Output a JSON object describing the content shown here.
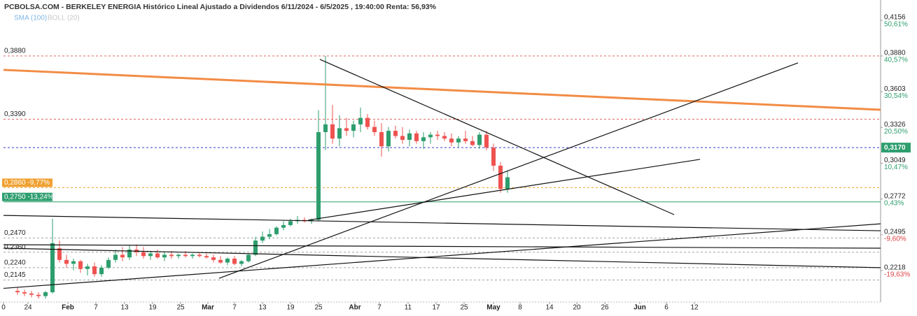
{
  "chart_data": {
    "type": "candlestick",
    "title": "PCBOLSA.COM - BERKELEY ENERGIA Histórico Lineal Ajustado a Dividendos 6/11/2024 - 6/5/2025 , 19:40:00 Renta: 56,93%",
    "legend": [
      "SMA (100)",
      "BOLL (20)"
    ],
    "up_color": "#2e9e6e",
    "down_color": "#ef5350",
    "xlim": [
      0,
      125.3
    ],
    "ylim": [
      0.1985,
      0.4286
    ],
    "xticks": [
      {
        "value": 0,
        "label": "0"
      },
      {
        "value": 3.5,
        "label": "24"
      },
      {
        "value": 9.2,
        "label": "Feb"
      },
      {
        "value": 13.2,
        "label": "7"
      },
      {
        "value": 17.3,
        "label": "13"
      },
      {
        "value": 21.3,
        "label": "19"
      },
      {
        "value": 25.3,
        "label": "25"
      },
      {
        "value": 29.2,
        "label": "Mar"
      },
      {
        "value": 33,
        "label": "7"
      },
      {
        "value": 37,
        "label": "13"
      },
      {
        "value": 41,
        "label": "19"
      },
      {
        "value": 45,
        "label": "25"
      },
      {
        "value": 50.2,
        "label": "Abr"
      },
      {
        "value": 53.7,
        "label": "7"
      },
      {
        "value": 57.8,
        "label": "11"
      },
      {
        "value": 61.8,
        "label": "17"
      },
      {
        "value": 65.8,
        "label": "25"
      },
      {
        "value": 70,
        "label": "May"
      },
      {
        "value": 73.8,
        "label": "8"
      },
      {
        "value": 78,
        "label": "14"
      },
      {
        "value": 81.9,
        "label": "20"
      },
      {
        "value": 85.9,
        "label": "26"
      },
      {
        "value": 90.9,
        "label": "Jun"
      },
      {
        "value": 94.7,
        "label": "6"
      },
      {
        "value": 98.7,
        "label": "12"
      }
    ],
    "yticks": [
      {
        "value": 0.4156,
        "label": "0,4156"
      },
      {
        "value": 0.388,
        "label": "0,3880"
      },
      {
        "value": 0.3603,
        "label": "0,3603"
      },
      {
        "value": 0.3326,
        "label": "0,3326"
      },
      {
        "value": 0.3049,
        "label": "0,3049"
      },
      {
        "value": 0.2772,
        "label": "0,2772"
      },
      {
        "value": 0.2495,
        "label": "0,2495"
      },
      {
        "value": 0.2218,
        "label": "0,2218"
      }
    ],
    "ytick_percent": [
      "50,61%",
      "40,57%",
      "30,54%",
      "20,50%",
      "10,47%",
      "0,43%",
      "-9,60%",
      "-19,63%"
    ],
    "levels": [
      {
        "value": 0.388,
        "label": "0,3880",
        "color": "#e06666",
        "style": "dashed"
      },
      {
        "value": 0.339,
        "label": "0,3390",
        "color": "#e06666",
        "style": "dashed"
      },
      {
        "value": 0.286,
        "label": "0,2860 -9,77%",
        "color": "#f0a030",
        "style": "dashed",
        "box": "#f0a030"
      },
      {
        "value": 0.275,
        "label": "0,2750 -13,24%",
        "color": "#2e9e6e",
        "style": "solid",
        "box": "#2e9e6e"
      },
      {
        "value": 0.247,
        "label": "0,2470",
        "color": "#9aa5a0",
        "style": "dashed"
      },
      {
        "value": 0.236,
        "label": "0,2360",
        "color": "#9aa5a0",
        "style": "dashed"
      },
      {
        "value": 0.224,
        "label": "0,2240",
        "color": "#9aa5a0",
        "style": "dashed"
      },
      {
        "value": 0.2145,
        "label": "0,2145",
        "color": "#9aa5a0",
        "style": "dashed"
      }
    ],
    "current": {
      "value": 0.317,
      "label": "0,3170",
      "color": "#3a3ad0"
    },
    "x": [
      2,
      3,
      4,
      5,
      6,
      7,
      8,
      9,
      10,
      11,
      12,
      13,
      14,
      15,
      16,
      17,
      18,
      19,
      20,
      21,
      22,
      23,
      24,
      25,
      26,
      27,
      28,
      29,
      30,
      31,
      32,
      33,
      34,
      35,
      36,
      37,
      38,
      39,
      40,
      41,
      42,
      43,
      44,
      45,
      46,
      47,
      48,
      49,
      50,
      51,
      52,
      53,
      54,
      55,
      56,
      57,
      58,
      59,
      60,
      61,
      62,
      63,
      64,
      65,
      66,
      67,
      68,
      69,
      70,
      71,
      72
    ],
    "candles": [
      [
        0.206,
        0.209,
        0.203,
        0.205
      ],
      [
        0.205,
        0.207,
        0.202,
        0.204
      ],
      [
        0.204,
        0.206,
        0.201,
        0.203
      ],
      [
        0.203,
        0.205,
        0.2,
        0.202
      ],
      [
        0.202,
        0.206,
        0.2,
        0.205
      ],
      [
        0.205,
        0.262,
        0.204,
        0.243
      ],
      [
        0.239,
        0.245,
        0.228,
        0.23
      ],
      [
        0.23,
        0.234,
        0.224,
        0.227
      ],
      [
        0.227,
        0.231,
        0.222,
        0.229
      ],
      [
        0.229,
        0.23,
        0.22,
        0.223
      ],
      [
        0.223,
        0.227,
        0.218,
        0.225
      ],
      [
        0.225,
        0.228,
        0.217,
        0.219
      ],
      [
        0.219,
        0.226,
        0.217,
        0.224
      ],
      [
        0.224,
        0.232,
        0.223,
        0.23
      ],
      [
        0.23,
        0.238,
        0.228,
        0.234
      ],
      [
        0.234,
        0.24,
        0.229,
        0.232
      ],
      [
        0.232,
        0.241,
        0.23,
        0.238
      ],
      [
        0.238,
        0.242,
        0.233,
        0.236
      ],
      [
        0.236,
        0.24,
        0.231,
        0.233
      ],
      [
        0.233,
        0.237,
        0.23,
        0.235
      ],
      [
        0.235,
        0.238,
        0.231,
        0.232
      ],
      [
        0.232,
        0.236,
        0.229,
        0.234
      ],
      [
        0.234,
        0.237,
        0.231,
        0.233
      ],
      [
        0.233,
        0.235,
        0.231,
        0.234
      ],
      [
        0.234,
        0.237,
        0.232,
        0.233
      ],
      [
        0.233,
        0.235,
        0.231,
        0.234
      ],
      [
        0.234,
        0.236,
        0.232,
        0.233
      ],
      [
        0.233,
        0.235,
        0.231,
        0.232
      ],
      [
        0.232,
        0.234,
        0.228,
        0.23
      ],
      [
        0.23,
        0.233,
        0.227,
        0.228
      ],
      [
        0.228,
        0.232,
        0.226,
        0.231
      ],
      [
        0.231,
        0.233,
        0.226,
        0.227
      ],
      [
        0.227,
        0.23,
        0.225,
        0.229
      ],
      [
        0.229,
        0.235,
        0.228,
        0.234
      ],
      [
        0.234,
        0.248,
        0.233,
        0.245
      ],
      [
        0.245,
        0.252,
        0.243,
        0.248
      ],
      [
        0.248,
        0.254,
        0.246,
        0.25
      ],
      [
        0.25,
        0.256,
        0.249,
        0.255
      ],
      [
        0.255,
        0.26,
        0.253,
        0.257
      ],
      [
        0.257,
        0.262,
        0.256,
        0.26
      ],
      [
        0.26,
        0.264,
        0.258,
        0.261
      ],
      [
        0.261,
        0.263,
        0.259,
        0.26
      ],
      [
        0.26,
        0.262,
        0.258,
        0.261
      ],
      [
        0.261,
        0.346,
        0.26,
        0.329
      ],
      [
        0.329,
        0.388,
        0.315,
        0.335
      ],
      [
        0.335,
        0.35,
        0.32,
        0.324
      ],
      [
        0.324,
        0.342,
        0.318,
        0.332
      ],
      [
        0.332,
        0.34,
        0.326,
        0.33
      ],
      [
        0.33,
        0.338,
        0.325,
        0.335
      ],
      [
        0.335,
        0.348,
        0.329,
        0.34
      ],
      [
        0.34,
        0.343,
        0.331,
        0.333
      ],
      [
        0.333,
        0.338,
        0.326,
        0.329
      ],
      [
        0.329,
        0.336,
        0.31,
        0.318
      ],
      [
        0.318,
        0.333,
        0.314,
        0.33
      ],
      [
        0.33,
        0.334,
        0.324,
        0.326
      ],
      [
        0.326,
        0.333,
        0.32,
        0.323
      ],
      [
        0.323,
        0.331,
        0.318,
        0.328
      ],
      [
        0.328,
        0.33,
        0.32,
        0.322
      ],
      [
        0.322,
        0.329,
        0.316,
        0.325
      ],
      [
        0.325,
        0.329,
        0.32,
        0.327
      ],
      [
        0.327,
        0.33,
        0.323,
        0.326
      ],
      [
        0.326,
        0.329,
        0.322,
        0.324
      ],
      [
        0.324,
        0.328,
        0.318,
        0.321
      ],
      [
        0.321,
        0.326,
        0.317,
        0.324
      ],
      [
        0.324,
        0.33,
        0.32,
        0.322
      ],
      [
        0.322,
        0.326,
        0.318,
        0.319
      ],
      [
        0.319,
        0.329,
        0.316,
        0.327
      ],
      [
        0.327,
        0.33,
        0.315,
        0.317
      ],
      [
        0.317,
        0.32,
        0.299,
        0.303
      ],
      [
        0.303,
        0.306,
        0.282,
        0.285
      ],
      [
        0.285,
        0.299,
        0.282,
        0.294
      ]
    ],
    "lines": [
      {
        "color": "#f28c45",
        "width": 3,
        "x": [
          0,
          125.3
        ],
        "y": [
          0.3772,
          0.3463
        ]
      },
      {
        "color": "#111111",
        "width": 1.2,
        "x": [
          45.2,
          95.8
        ],
        "y": [
          0.3853,
          0.2651
        ]
      },
      {
        "color": "#111111",
        "width": 1.2,
        "x": [
          30.8,
          113.5
        ],
        "y": [
          0.2158,
          0.3826
        ]
      },
      {
        "color": "#111111",
        "width": 1.2,
        "x": [
          43.5,
          99.5
        ],
        "y": [
          0.2608,
          0.3079
        ]
      },
      {
        "color": "#111111",
        "width": 1.2,
        "x": [
          0,
          125.3
        ],
        "y": [
          0.2645,
          0.2526
        ]
      },
      {
        "color": "#111111",
        "width": 1.2,
        "x": [
          0,
          125.3
        ],
        "y": [
          0.2391,
          0.224
        ]
      },
      {
        "color": "#111111",
        "width": 1.2,
        "x": [
          0,
          125.3
        ],
        "y": [
          0.208,
          0.258
        ]
      },
      {
        "color": "#111111",
        "width": 1.2,
        "x": [
          0,
          125.3
        ],
        "y": [
          0.2418,
          0.2391
        ]
      }
    ]
  }
}
